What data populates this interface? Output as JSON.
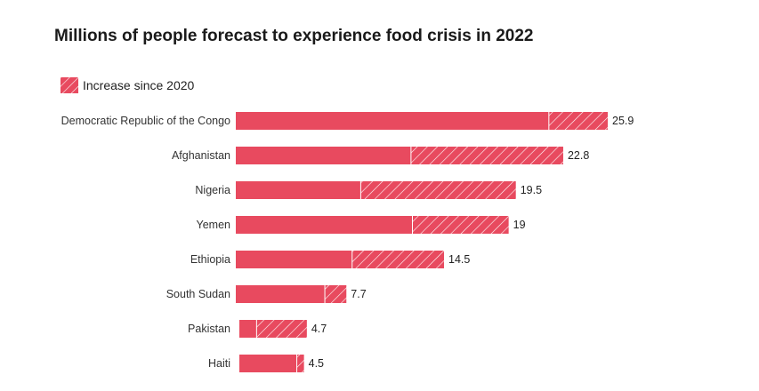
{
  "chart_data": {
    "type": "bar",
    "orientation": "horizontal",
    "stacked": true,
    "title": "Millions of people forecast to experience food crisis in 2022",
    "categories": [
      "Democratic Republic of the Congo",
      "Afghanistan",
      "Nigeria",
      "Yemen",
      "Ethiopia",
      "South Sudan",
      "Pakistan",
      "Haiti"
    ],
    "totals": [
      25.9,
      22.8,
      19.5,
      19,
      14.5,
      7.7,
      4.7,
      4.5
    ],
    "series": [
      {
        "values": [
          21.8,
          12.2,
          8.7,
          12.3,
          8.1,
          6.2,
          1.2,
          4.0
        ]
      },
      {
        "name": "Increase since 2020",
        "values": [
          4.1,
          10.6,
          10.8,
          6.7,
          6.4,
          1.5,
          3.5,
          0.5
        ]
      }
    ],
    "total_labels": [
      "25.9",
      "22.8",
      "19.5",
      "19",
      "14.5",
      "7.7",
      "4.7",
      "4.5"
    ],
    "xlim": [
      0,
      25.9
    ],
    "legend_position": "top-left",
    "grid": false,
    "colors": {
      "bar": "#e84a5f",
      "hatch": "#ffffff"
    }
  }
}
